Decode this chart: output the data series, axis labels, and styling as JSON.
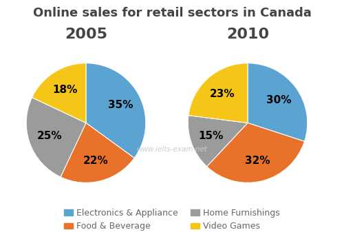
{
  "title": "Online sales for retail sectors in Canada",
  "year_labels": [
    "2005",
    "2010"
  ],
  "categories": [
    "Electronics & Appliance",
    "Food & Beverage",
    "Home Furnishings",
    "Video Games"
  ],
  "colors": [
    "#5BA3D0",
    "#E8722A",
    "#9B9B9B",
    "#F5C518"
  ],
  "pie_2005": [
    35,
    22,
    25,
    18
  ],
  "pie_2010": [
    30,
    32,
    15,
    23
  ],
  "startangle_2005": 90,
  "startangle_2010": 90,
  "watermark": "www.ielts-exam.net",
  "watermark_color": "#CCCCCC",
  "legend_labels": [
    "Electronics & Appliance",
    "Food & Beverage",
    "Home Furnishings",
    "Video Games"
  ],
  "title_fontsize": 13,
  "year_fontsize": 16,
  "pct_fontsize": 11,
  "legend_fontsize": 9,
  "legend_text_color": "#666666",
  "title_color": "#444444",
  "background_color": "#FFFFFF"
}
